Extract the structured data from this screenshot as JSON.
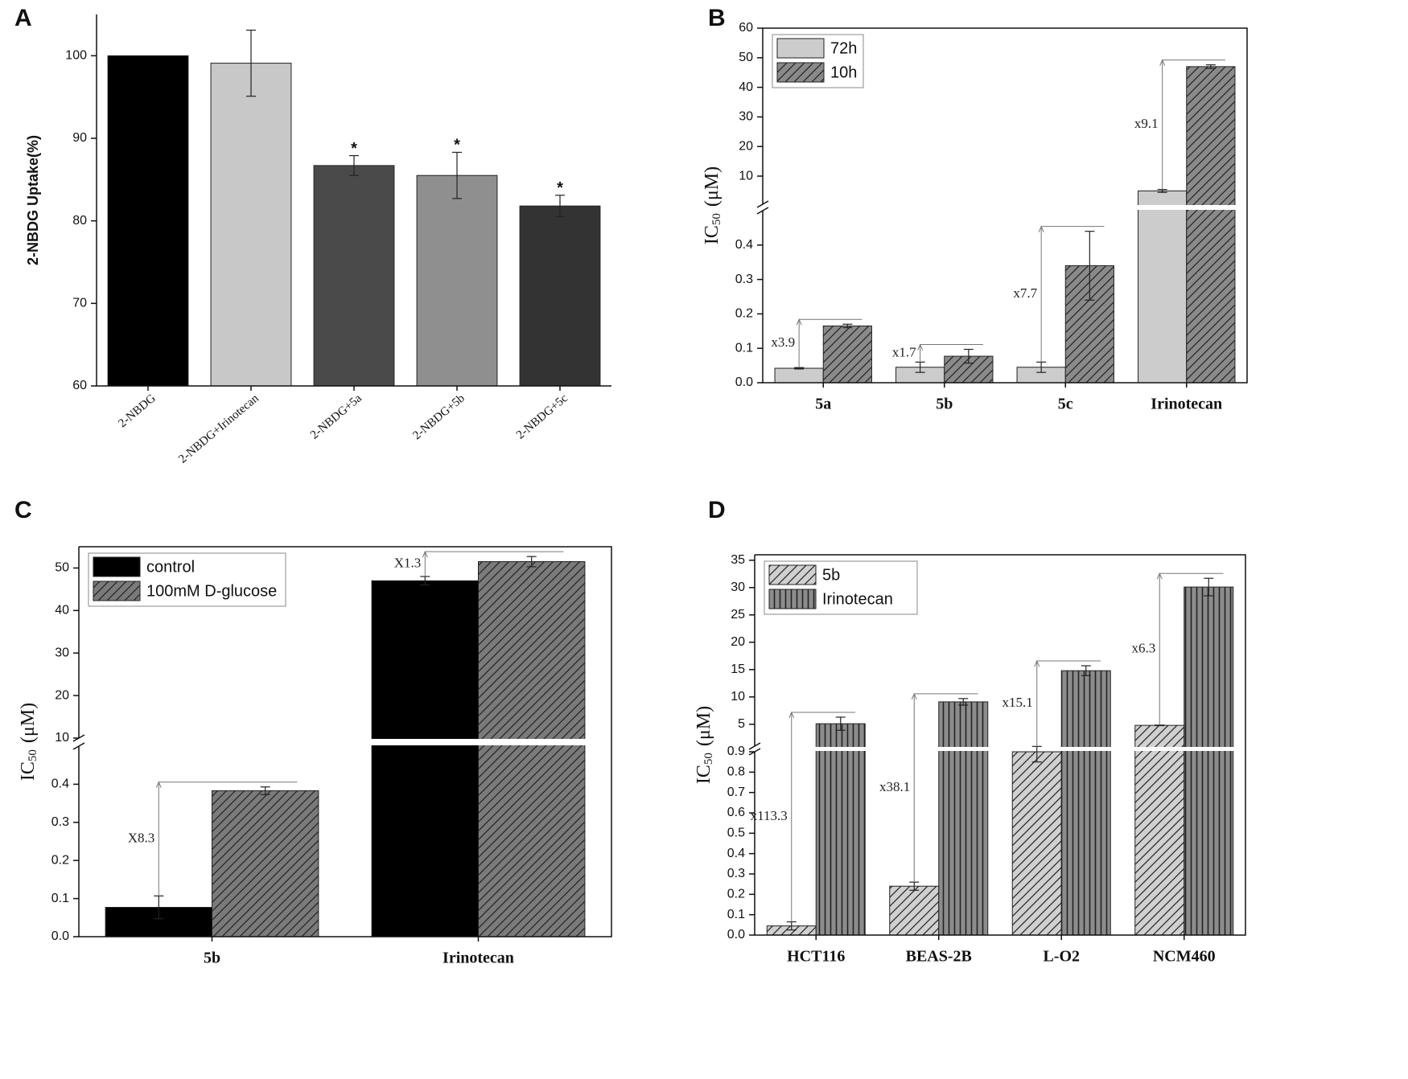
{
  "chart_data": [
    {
      "panel_label": "A",
      "type": "bar",
      "y_label": "2-NBDG Uptake(%)",
      "categories": [
        "2-NBDG",
        "2-NBDG+Irinotecan",
        "2-NBDG+5a",
        "2-NBDG+5b",
        "2-NBDG+5c"
      ],
      "values": [
        100,
        99.1,
        86.7,
        85.5,
        81.8
      ],
      "errors": [
        null,
        4,
        1.2,
        2.8,
        1.3
      ],
      "colors": [
        "#000000",
        "#c8c8c8",
        "#4a4a4a",
        "#8f8f8f",
        "#333333"
      ],
      "significance": [
        null,
        null,
        "*",
        "*",
        "*"
      ],
      "ylim": [
        60,
        105
      ],
      "yticks": [
        60,
        70,
        80,
        90,
        100
      ]
    },
    {
      "panel_label": "B",
      "type": "bar",
      "y_label": "IC",
      "y_label_sub": "50",
      "y_label_unit": "(μM)",
      "categories": [
        "5a",
        "5b",
        "5c",
        "Irinotecan"
      ],
      "series": [
        {
          "name": "72h",
          "color": "#cccccc",
          "pattern": "solid",
          "values": [
            0.042,
            0.045,
            0.045,
            5
          ],
          "errors": [
            0.002,
            0.015,
            0.015,
            0.5
          ]
        },
        {
          "name": "10h",
          "color": "#8a8a8a",
          "pattern": "diag",
          "values": [
            0.165,
            0.077,
            0.34,
            47
          ],
          "errors": [
            0.005,
            0.02,
            0.1,
            0.6
          ]
        }
      ],
      "ratio_labels": [
        "x3.9",
        "x1.7",
        "x7.7",
        "x9.1"
      ],
      "ylim_lower": [
        0,
        0.5
      ],
      "yticks_lower": [
        {
          "value": 0,
          "label": "0.0"
        },
        0.1,
        0.2,
        0.3,
        0.4
      ],
      "ylim_upper": [
        0.5,
        60
      ],
      "yticks_upper": [
        10,
        20,
        30,
        40,
        50,
        60
      ],
      "legend": "upper left"
    },
    {
      "panel_label": "C",
      "type": "bar",
      "y_label": "IC",
      "y_label_sub": "50",
      "y_label_unit": "(μM)",
      "categories": [
        "5b",
        "Irinotecan"
      ],
      "series": [
        {
          "name": "control",
          "color": "#000000",
          "pattern": "solid",
          "values": [
            0.077,
            47
          ],
          "errors": [
            0.03,
            1
          ]
        },
        {
          "name": "100mM D-glucose",
          "color": "#7a7a7a",
          "pattern": "diag",
          "values": [
            0.383,
            51.5
          ],
          "errors": [
            0.01,
            1.2
          ]
        }
      ],
      "ratio_labels": [
        "X8.3",
        "X1.3"
      ],
      "ylim_lower": [
        0,
        0.5
      ],
      "yticks_lower": [
        {
          "value": 0,
          "label": "0.0"
        },
        0.1,
        0.2,
        0.3,
        0.4
      ],
      "ylim_upper": [
        10,
        55
      ],
      "yticks_upper": [
        10,
        20,
        30,
        40,
        50
      ],
      "legend": "upper left"
    },
    {
      "panel_label": "D",
      "type": "bar",
      "y_label": "IC",
      "y_label_sub": "50",
      "y_label_unit": "(μM)",
      "categories": [
        "HCT116",
        "BEAS-2B",
        "L-O2",
        "NCM460"
      ],
      "series": [
        {
          "name": "5b",
          "color": "#d0d0d0",
          "pattern": "diag",
          "values": [
            0.045,
            0.24,
            0.9,
            4.8
          ],
          "errors": [
            0.02,
            0.02,
            0.05,
            0.05
          ]
        },
        {
          "name": "Irinotecan",
          "color": "#8c8c8c",
          "pattern": "vertical",
          "values": [
            5.1,
            9.1,
            14.8,
            30.1
          ],
          "errors": [
            1.2,
            0.6,
            0.9,
            1.6
          ]
        }
      ],
      "ratio_labels": [
        "x113.3",
        "x38.1",
        "x15.1",
        "x6.3"
      ],
      "ylim_lower": [
        0,
        0.9
      ],
      "yticks_lower": [
        {
          "value": 0,
          "label": "0.0"
        },
        0.1,
        0.2,
        0.3,
        0.4,
        0.5,
        0.6,
        0.7,
        0.8,
        0.9
      ],
      "ylim_upper": [
        1,
        36
      ],
      "yticks_upper": [
        5,
        10,
        15,
        20,
        25,
        30,
        35
      ],
      "legend": "upper left"
    }
  ]
}
